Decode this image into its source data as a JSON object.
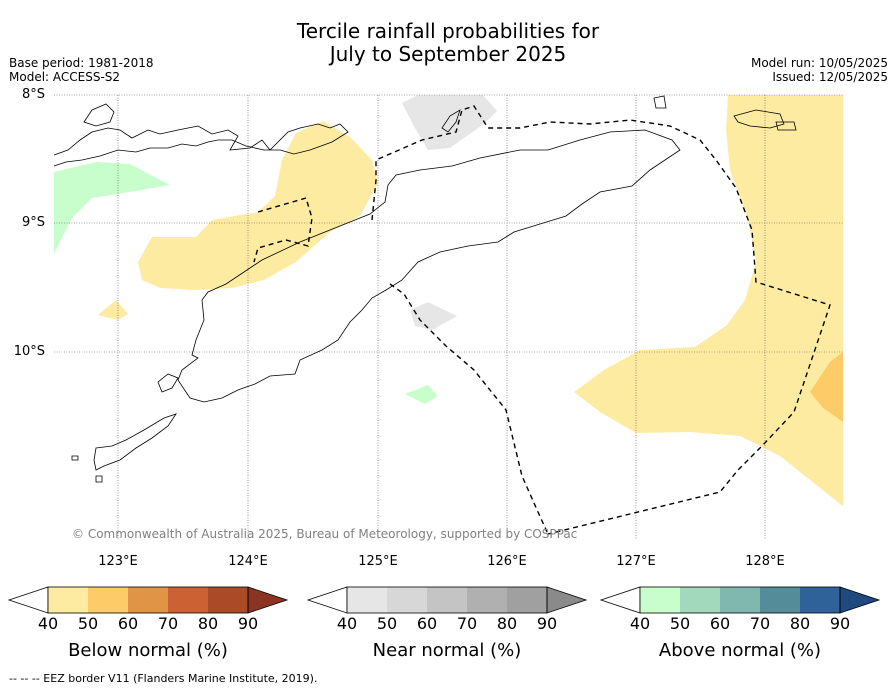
{
  "title_line1": "Tercile rainfall probabilities for",
  "title_line2": "July to September 2025",
  "meta": {
    "base_period": "Base period: 1981-2018",
    "model": "Model: ACCESS-S2",
    "model_run": "Model run: 10/05/2025",
    "issued": "Issued: 12/05/2025"
  },
  "map": {
    "lat_labels": [
      "8°S",
      "9°S",
      "10°S"
    ],
    "lon_labels": [
      "123°E",
      "124°E",
      "125°E",
      "126°E",
      "127°E",
      "128°E"
    ],
    "credit": "© Commonwealth of Australia 2025, Bureau of Meteorology, supported by COSPPac"
  },
  "colorbars": [
    {
      "title": "Below normal (%)",
      "ticks": [
        "40",
        "50",
        "60",
        "70",
        "80",
        "90"
      ],
      "colors": [
        "#ffffff",
        "#feeba2",
        "#fecb69",
        "#e09446",
        "#cc6234",
        "#aa4a27",
        "#8b3421"
      ]
    },
    {
      "title": "Near normal (%)",
      "ticks": [
        "40",
        "50",
        "60",
        "70",
        "80",
        "90"
      ],
      "colors": [
        "#ffffff",
        "#e6e6e6",
        "#d7d7d7",
        "#c4c4c4",
        "#b0b0b0",
        "#a0a0a0",
        "#8a8a8a"
      ]
    },
    {
      "title": "Above normal (%)",
      "ticks": [
        "40",
        "50",
        "60",
        "70",
        "80",
        "90"
      ],
      "colors": [
        "#ffffff",
        "#c8fecc",
        "#a2d9bd",
        "#80b7af",
        "#558c9a",
        "#30629a",
        "#1f4a80"
      ]
    }
  ],
  "footnote": "--  --  -- EEZ border V11 (Flanders Marine Institute, 2019)."
}
